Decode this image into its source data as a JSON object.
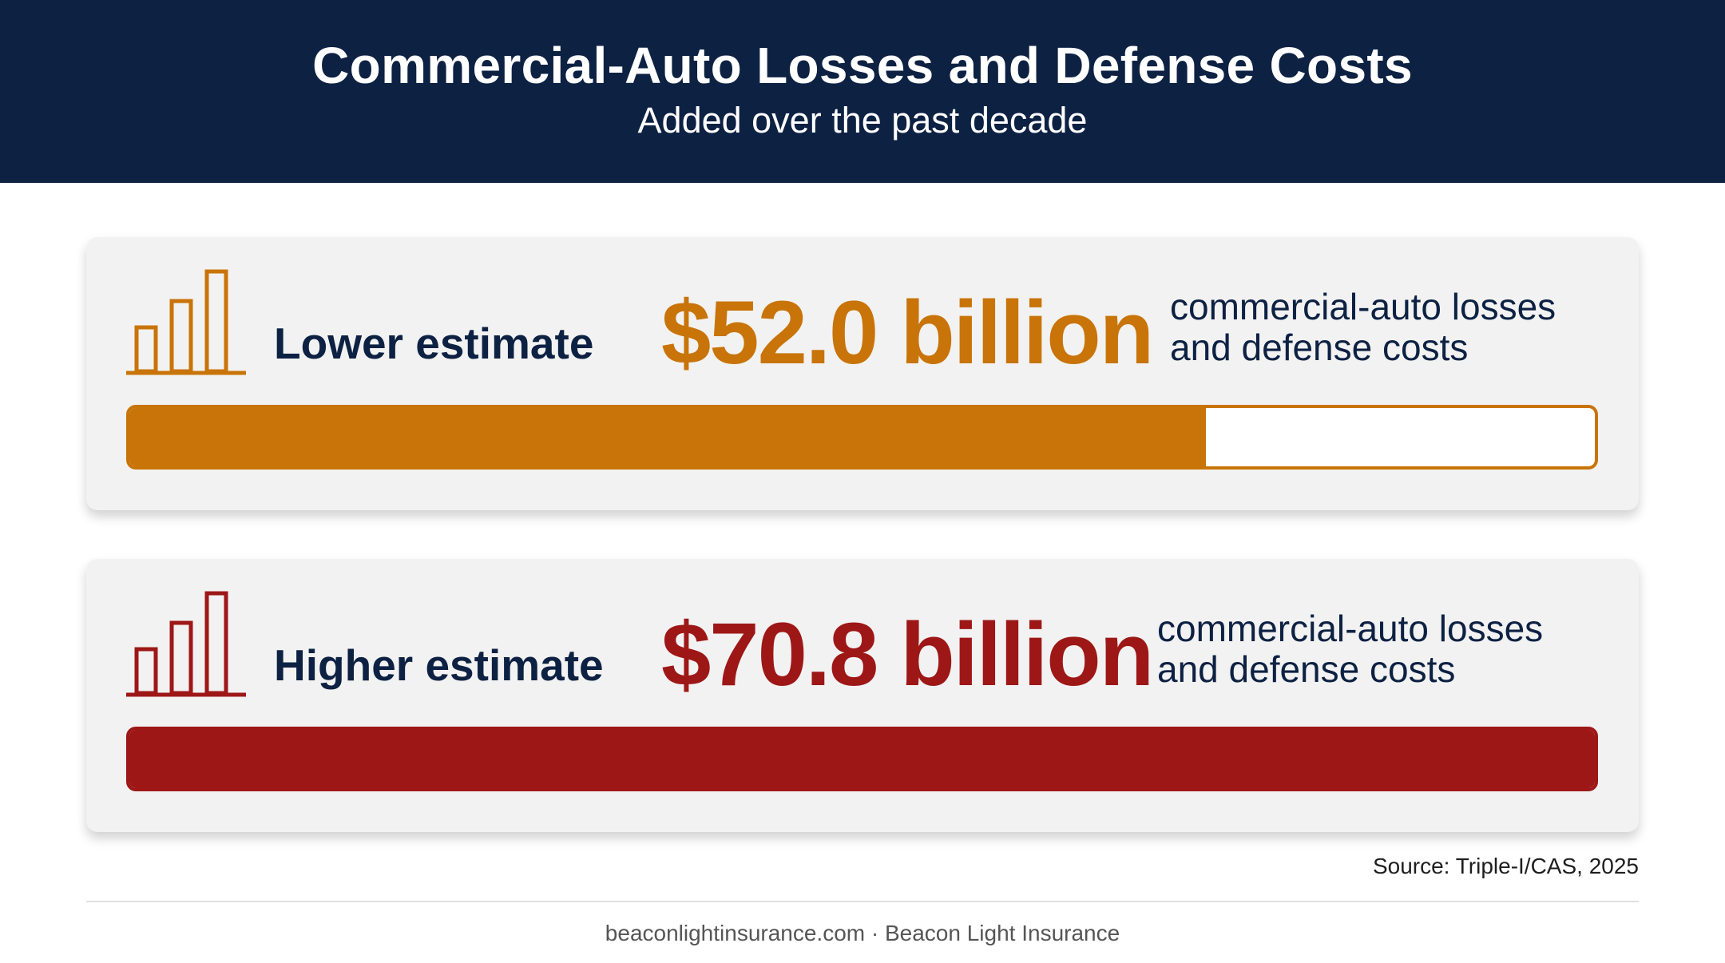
{
  "header": {
    "title": "Commercial-Auto Losses and Defense Costs",
    "subtitle": "Added over the past decade"
  },
  "colors": {
    "header_bg": "#0d2143",
    "lower_accent": "#c97408",
    "higher_accent": "#9e1717",
    "card_bg": "#f2f2f2"
  },
  "chart_data": {
    "type": "bar",
    "title": "Commercial-Auto Losses and Defense Costs",
    "subtitle": "Added over the past decade",
    "categories": [
      "Lower estimate",
      "Higher estimate"
    ],
    "values": [
      52.0,
      70.8
    ],
    "max_value": 70.8,
    "estimates": [
      {
        "label": "Lower estimate",
        "value": 52.0,
        "value_text": "$52.0 billion",
        "description_line1": "commercial-auto losses",
        "description_line2": "and defense costs",
        "color": "#c97408",
        "icon": "bar-chart-icon"
      },
      {
        "label": "Higher estimate",
        "value": 70.8,
        "value_text": "$70.8 billion",
        "description_line1": "commercial-auto losses",
        "description_line2": "and defense costs",
        "color": "#9e1717",
        "icon": "bar-chart-icon"
      }
    ]
  },
  "source": "Source: Triple-I/CAS, 2025",
  "footer": "beaconlightinsurance.com · Beacon Light Insurance"
}
